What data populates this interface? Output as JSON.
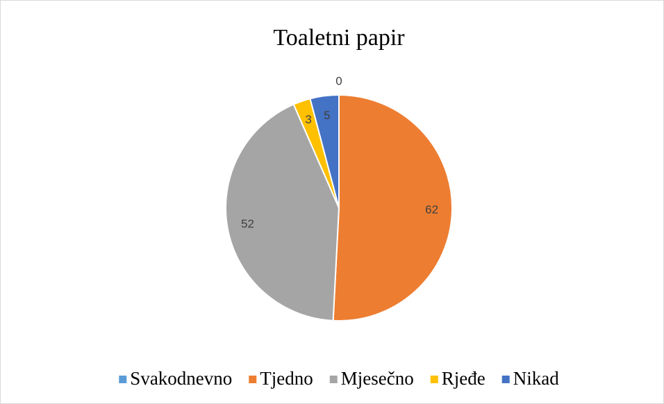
{
  "chart_data": {
    "type": "pie",
    "title": "Toaletni papir",
    "categories": [
      "Svakodnevno",
      "Tjedno",
      "Mjesečno",
      "Rjeđe",
      "Nikad"
    ],
    "values": [
      0,
      62,
      52,
      3,
      5
    ],
    "colors": [
      "#5b9bd5",
      "#ed7d31",
      "#a5a5a5",
      "#ffc000",
      "#4472c4"
    ],
    "legend": "bottom"
  }
}
